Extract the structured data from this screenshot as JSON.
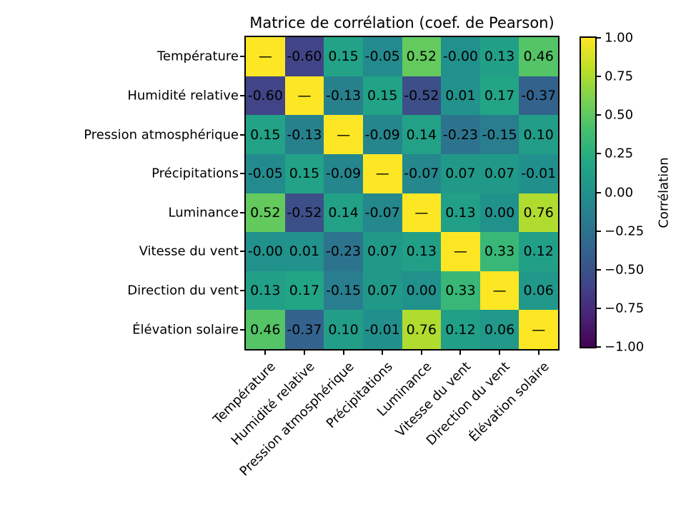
{
  "title": "Matrice de corrélation (coef. de Pearson)",
  "chart_data": {
    "type": "heatmap",
    "colormap": "viridis",
    "vmin": -1.0,
    "vmax": 1.0,
    "diagonal_symbol": "—",
    "categories": [
      "Température",
      "Humidité relative",
      "Pression atmosphérique",
      "Précipitations",
      "Luminance",
      "Vitesse du vent",
      "Direction du vent",
      "Élévation solaire"
    ],
    "cells": [
      [
        "—",
        "-0.60",
        "0.15",
        "-0.05",
        "0.52",
        "-0.00",
        "0.13",
        "0.46"
      ],
      [
        "-0.60",
        "—",
        "-0.13",
        "0.15",
        "-0.52",
        "0.01",
        "0.17",
        "-0.37"
      ],
      [
        "0.15",
        "-0.13",
        "—",
        "-0.09",
        "0.14",
        "-0.23",
        "-0.15",
        "0.10"
      ],
      [
        "-0.05",
        "0.15",
        "-0.09",
        "—",
        "-0.07",
        "0.07",
        "0.07",
        "-0.01"
      ],
      [
        "0.52",
        "-0.52",
        "0.14",
        "-0.07",
        "—",
        "0.13",
        "0.00",
        "0.76"
      ],
      [
        "-0.00",
        "0.01",
        "-0.23",
        "0.07",
        "0.13",
        "—",
        "0.33",
        "0.12"
      ],
      [
        "0.13",
        "0.17",
        "-0.15",
        "0.07",
        "0.00",
        "0.33",
        "—",
        "0.06"
      ],
      [
        "0.46",
        "-0.37",
        "0.10",
        "-0.01",
        "0.76",
        "0.12",
        "0.06",
        "—"
      ]
    ],
    "colorbar": {
      "label": "Corrélation",
      "ticks": [
        "1.00",
        "0.75",
        "0.50",
        "0.25",
        "0.00",
        "−0.25",
        "−0.50",
        "−0.75",
        "−1.00"
      ]
    },
    "colors": {
      "viridis_low": "#440154",
      "viridis_mid": "#21918c",
      "viridis_high": "#fde725",
      "text": "#000000",
      "background": "#ffffff"
    }
  }
}
